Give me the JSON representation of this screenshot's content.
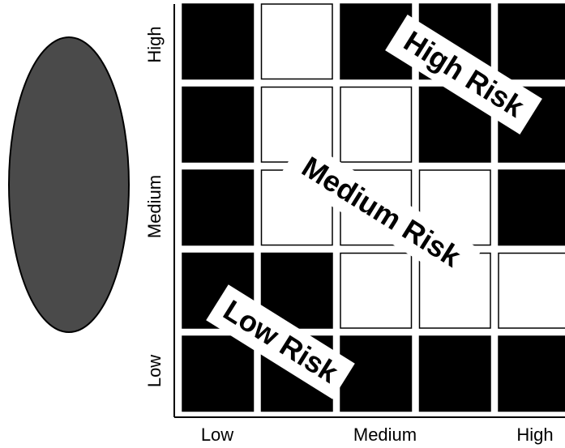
{
  "y_axis_labels": [
    "High",
    "Medium",
    "Low"
  ],
  "x_axis_labels": [
    "Low",
    "Medium",
    "High"
  ],
  "zone_labels": [
    "High Risk",
    "Medium Risk",
    "Low Risk"
  ],
  "cells": [
    [
      "#000000",
      "#ffffff",
      "#000000",
      "#000000",
      "#000000"
    ],
    [
      "#000000",
      "#ffffff",
      "#ffffff",
      "#000000",
      "#000000"
    ],
    [
      "#000000",
      "#ffffff",
      "#ffffff",
      "#ffffff",
      "#000000"
    ],
    [
      "#000000",
      "#000000",
      "#ffffff",
      "#ffffff",
      "#ffffff"
    ],
    [
      "#000000",
      "#000000",
      "#000000",
      "#000000",
      "#000000"
    ]
  ],
  "ellipse_color": "#4a4a4a"
}
